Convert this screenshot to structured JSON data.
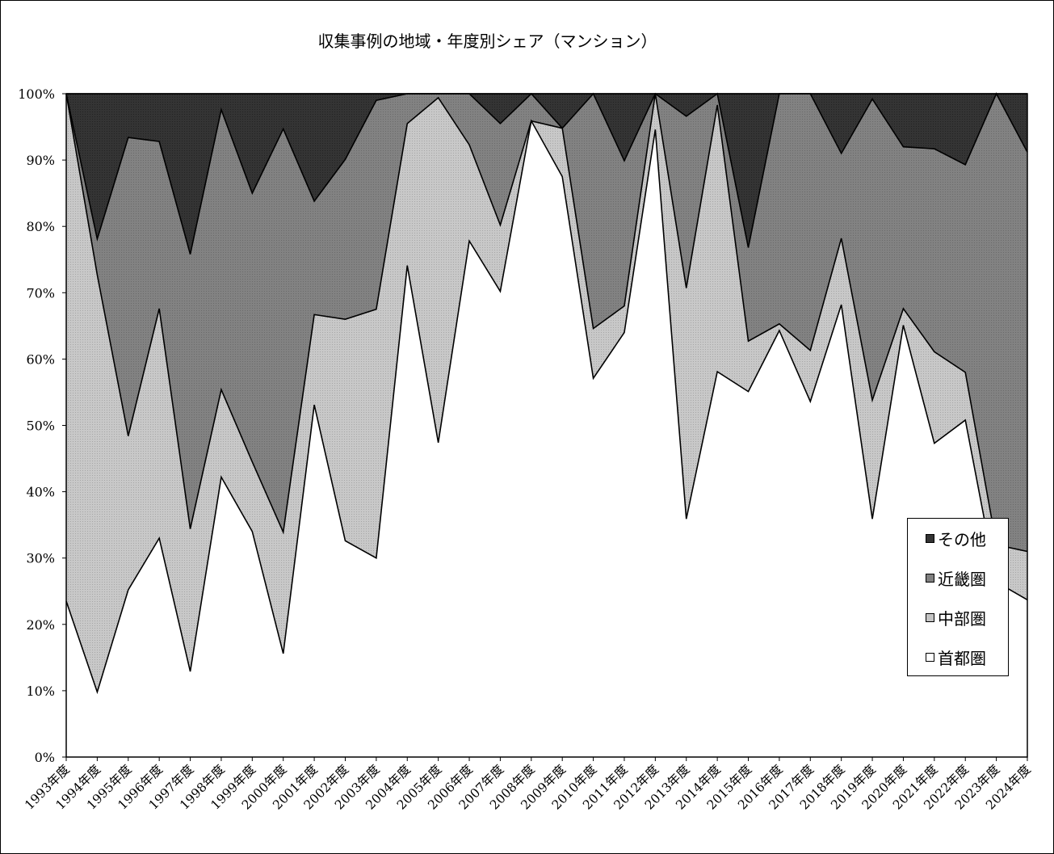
{
  "chart_data": {
    "type": "area",
    "stacked": true,
    "percent": true,
    "title": "収集事例の地域・年度別シェア（マンション）",
    "xlabel": "",
    "ylabel": "",
    "ylim": [
      0,
      100
    ],
    "yticks": [
      "0%",
      "10%",
      "20%",
      "30%",
      "40%",
      "50%",
      "60%",
      "70%",
      "80%",
      "90%",
      "100%"
    ],
    "legend_position": "right",
    "categories": [
      "1993年度",
      "1994年度",
      "1995年度",
      "1996年度",
      "1997年度",
      "1998年度",
      "1999年度",
      "2000年度",
      "2001年度",
      "2002年度",
      "2003年度",
      "2004年度",
      "2005年度",
      "2006年度",
      "2007年度",
      "2008年度",
      "2009年度",
      "2010年度",
      "2011年度",
      "2012年度",
      "2013年度",
      "2014年度",
      "2015年度",
      "2016年度",
      "2017年度",
      "2018年度",
      "2019年度",
      "2020年度",
      "2021年度",
      "2022年度",
      "2023年度",
      "2024年度"
    ],
    "series": [
      {
        "name": "首都圏",
        "color": "#ffffff",
        "values": [
          23.5,
          9.8,
          25.2,
          33.0,
          12.9,
          42.2,
          34.0,
          15.6,
          53.1,
          32.6,
          30.0,
          74.1,
          47.4,
          77.8,
          70.2,
          95.9,
          87.5,
          57.1,
          64.0,
          94.6,
          35.9,
          58.1,
          55.1,
          64.3,
          53.6,
          68.2,
          35.9,
          65.1,
          47.3,
          50.8,
          26.4,
          23.7
        ]
      },
      {
        "name": "中部圏",
        "color": "#c4c4c4",
        "values": [
          76.5,
          62.9,
          23.2,
          34.6,
          21.5,
          13.2,
          10.5,
          18.3,
          13.6,
          33.4,
          37.5,
          21.4,
          52.0,
          14.5,
          10.0,
          0.0,
          7.3,
          7.5,
          4.0,
          5.4,
          34.8,
          40.2,
          7.6,
          1.0,
          7.7,
          10.0,
          17.9,
          2.5,
          13.8,
          7.2,
          5.6,
          7.3
        ]
      },
      {
        "name": "近畿圏",
        "color": "#808080",
        "values": [
          0.0,
          5.4,
          45.0,
          25.2,
          41.4,
          42.2,
          40.5,
          60.8,
          17.1,
          24.1,
          31.5,
          4.5,
          0.6,
          7.7,
          15.3,
          4.1,
          0.0,
          35.4,
          21.9,
          0.0,
          25.9,
          1.7,
          14.1,
          34.7,
          38.7,
          12.8,
          45.4,
          24.4,
          30.6,
          31.3,
          68.0,
          60.2
        ]
      },
      {
        "name": "その他",
        "color": "#333333",
        "values": [
          0.0,
          21.9,
          6.6,
          7.2,
          24.2,
          2.4,
          15.0,
          5.3,
          16.2,
          9.9,
          1.0,
          0.0,
          0.0,
          0.0,
          4.5,
          0.0,
          5.2,
          0.0,
          10.1,
          0.0,
          3.4,
          0.0,
          23.2,
          0.0,
          0.0,
          9.0,
          0.8,
          8.0,
          8.3,
          10.7,
          0.0,
          8.8
        ]
      }
    ]
  }
}
